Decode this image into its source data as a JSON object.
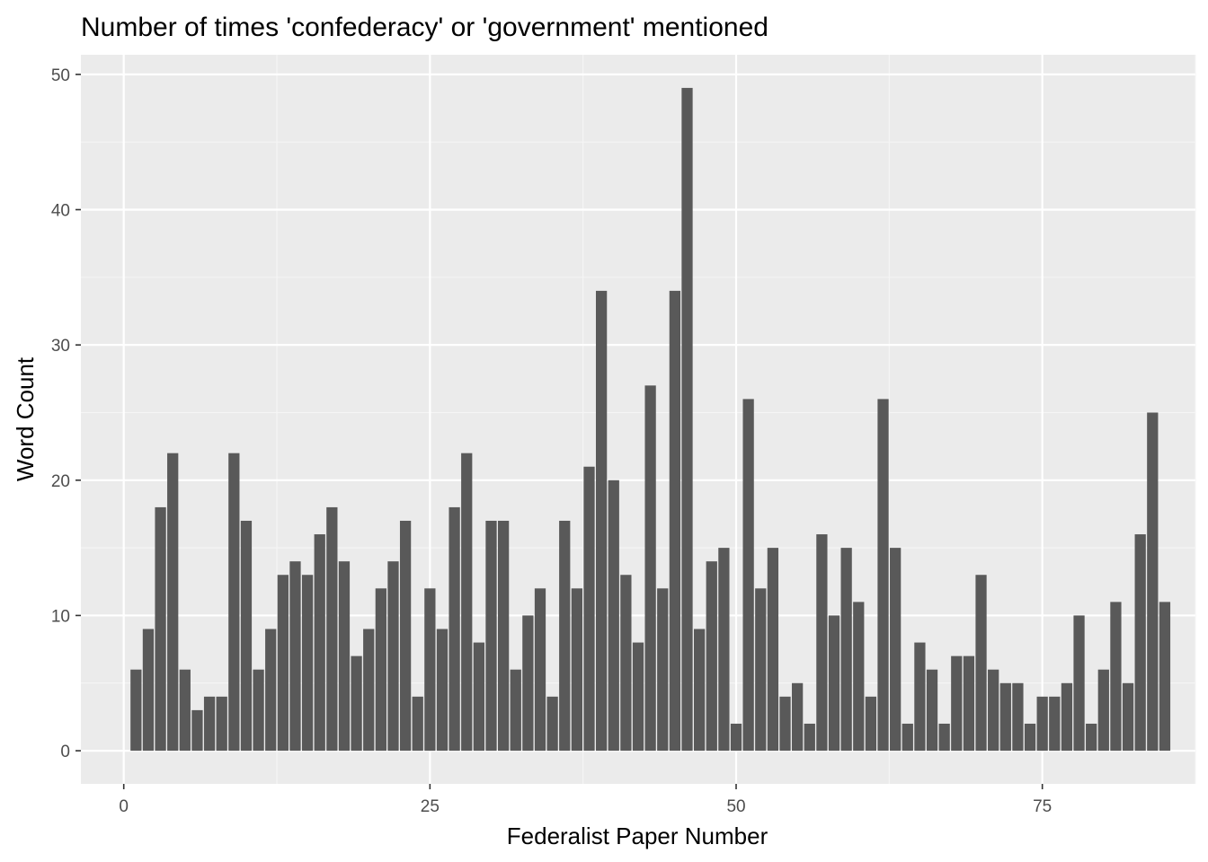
{
  "chart_data": {
    "type": "bar",
    "title": "Number of times 'confederacy' or 'government' mentioned",
    "xlabel": "Federalist Paper Number",
    "ylabel": "Word Count",
    "x": [
      1,
      2,
      3,
      4,
      5,
      6,
      7,
      8,
      9,
      10,
      11,
      12,
      13,
      14,
      15,
      16,
      17,
      18,
      19,
      20,
      21,
      22,
      23,
      24,
      25,
      26,
      27,
      28,
      29,
      30,
      31,
      32,
      33,
      34,
      35,
      36,
      37,
      38,
      39,
      40,
      41,
      42,
      43,
      44,
      45,
      46,
      47,
      48,
      49,
      50,
      51,
      52,
      53,
      54,
      55,
      56,
      57,
      58,
      59,
      60,
      61,
      62,
      63,
      64,
      65,
      66,
      67,
      68,
      69,
      70,
      71,
      72,
      73,
      74,
      75,
      76,
      77,
      78,
      79,
      80,
      81,
      82,
      83,
      84,
      85
    ],
    "values": [
      6,
      9,
      18,
      22,
      6,
      3,
      4,
      4,
      22,
      17,
      6,
      9,
      13,
      14,
      13,
      16,
      18,
      14,
      7,
      9,
      12,
      14,
      17,
      4,
      12,
      9,
      18,
      22,
      8,
      17,
      17,
      6,
      10,
      12,
      4,
      17,
      12,
      21,
      34,
      20,
      13,
      8,
      27,
      12,
      34,
      49,
      9,
      14,
      15,
      2,
      26,
      12,
      15,
      4,
      5,
      2,
      16,
      10,
      15,
      11,
      4,
      26,
      15,
      2,
      8,
      6,
      2,
      7,
      7,
      13,
      6,
      5,
      5,
      2,
      4,
      4,
      5,
      10,
      2,
      6,
      11,
      5,
      16,
      25,
      11
    ],
    "xlim": [
      -3.5,
      87.5
    ],
    "ylim": [
      -2.45,
      51.45
    ],
    "x_ticks": [
      0,
      25,
      50,
      75
    ],
    "x_tick_labels": [
      "0",
      "25",
      "50",
      "75"
    ],
    "y_ticks": [
      0,
      10,
      20,
      30,
      40,
      50
    ],
    "y_tick_labels": [
      "0",
      "10",
      "20",
      "30",
      "40",
      "50"
    ],
    "grid": true,
    "colors": {
      "bar": "#595959",
      "panel_background": "#ebebeb",
      "grid_major": "#ffffff",
      "grid_minor": "#f5f5f5",
      "tick_label": "#4d4d4d"
    }
  }
}
